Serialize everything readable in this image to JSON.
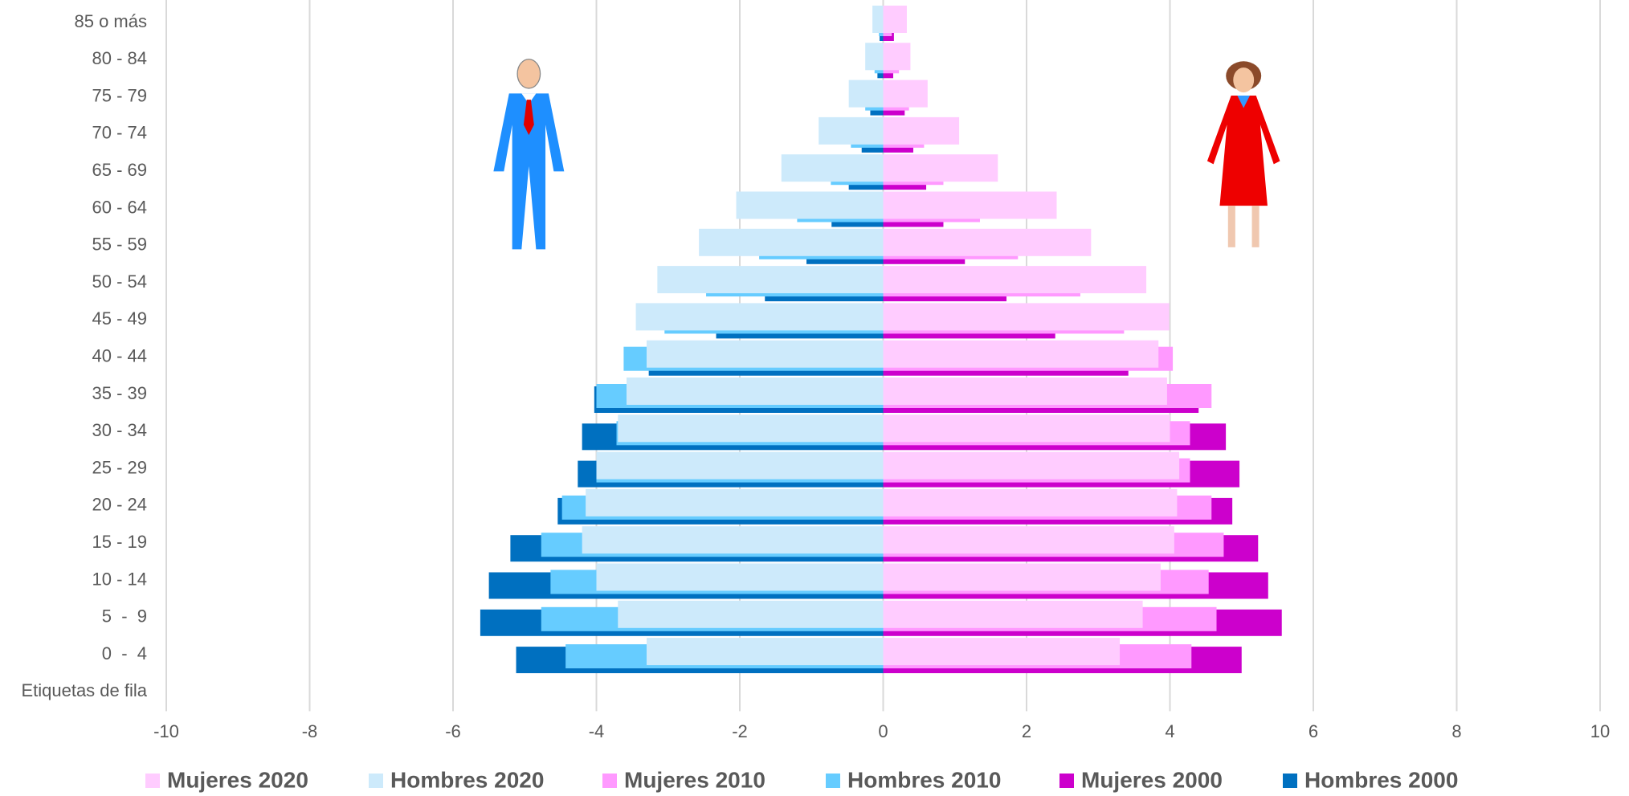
{
  "chart_data": {
    "type": "pyramid",
    "categories": [
      "85 o más",
      "80 - 84",
      "75 - 79",
      "70 - 74",
      "65 - 69",
      "60 - 64",
      "55 - 59",
      "50 - 54",
      "45 - 49",
      "40 - 44",
      "35 - 39",
      "30 - 34",
      "25 - 29",
      "20 - 24",
      "15 - 19",
      "10 - 14",
      "5  -  9",
      "0  -  4",
      "Etiquetas de fila"
    ],
    "series": [
      {
        "name": "Mujeres 2020",
        "color": "#ffccff",
        "values": [
          0.33,
          0.38,
          0.62,
          1.06,
          1.6,
          2.42,
          2.9,
          3.67,
          3.99,
          3.84,
          3.96,
          4.0,
          4.13,
          4.1,
          4.06,
          3.87,
          3.62,
          3.3,
          null
        ]
      },
      {
        "name": "Hombres 2020",
        "color": "#cdeafb",
        "values": [
          -0.15,
          -0.25,
          -0.48,
          -0.9,
          -1.42,
          -2.05,
          -2.57,
          -3.15,
          -3.45,
          -3.3,
          -3.58,
          -3.7,
          -4.0,
          -4.15,
          -4.2,
          -4.0,
          -3.7,
          -3.3,
          null
        ]
      },
      {
        "name": "Mujeres 2010",
        "color": "#ff99ff",
        "values": [
          0.12,
          0.22,
          0.36,
          0.57,
          0.84,
          1.35,
          1.88,
          2.75,
          3.36,
          4.04,
          4.58,
          4.28,
          4.28,
          4.58,
          4.75,
          4.54,
          4.65,
          4.3,
          null
        ]
      },
      {
        "name": "Hombres 2010",
        "color": "#66ccff",
        "values": [
          -0.06,
          -0.12,
          -0.25,
          -0.45,
          -0.73,
          -1.2,
          -1.73,
          -2.47,
          -3.05,
          -3.62,
          -4.0,
          -3.72,
          -4.0,
          -4.48,
          -4.77,
          -4.64,
          -4.77,
          -4.43,
          null
        ]
      },
      {
        "name": "Mujeres 2000",
        "color": "#cc00cc",
        "values": [
          0.15,
          0.14,
          0.3,
          0.42,
          0.6,
          0.84,
          1.14,
          1.72,
          2.4,
          3.42,
          4.4,
          4.78,
          4.97,
          4.87,
          5.23,
          5.37,
          5.56,
          5.0,
          null
        ]
      },
      {
        "name": "Hombres 2000",
        "color": "#0070c0",
        "values": [
          -0.05,
          -0.08,
          -0.18,
          -0.3,
          -0.48,
          -0.72,
          -1.07,
          -1.65,
          -2.33,
          -3.27,
          -4.03,
          -4.2,
          -4.26,
          -4.54,
          -5.2,
          -5.5,
          -5.62,
          -5.12,
          null
        ]
      }
    ],
    "xlim": [
      -10,
      10
    ],
    "xticks": [
      -10,
      -8,
      -6,
      -4,
      -2,
      0,
      2,
      4,
      6,
      8,
      10
    ],
    "grid": true,
    "legend": "bottom"
  }
}
